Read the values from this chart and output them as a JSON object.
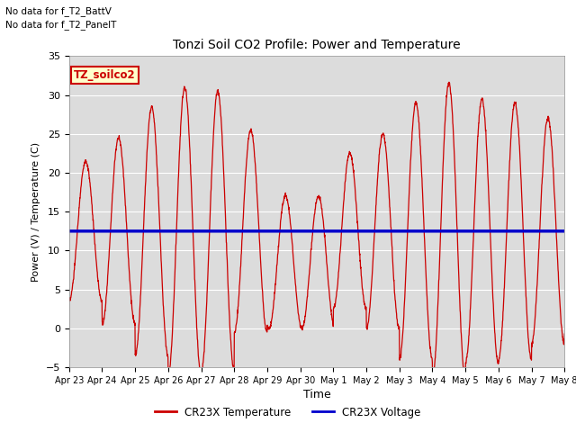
{
  "title": "Tonzi Soil CO2 Profile: Power and Temperature",
  "ylabel": "Power (V) / Temperature (C)",
  "xlabel": "Time",
  "annotation_lines": [
    "No data for f_T2_BattV",
    "No data for f_T2_PanelT"
  ],
  "legend_label_box": "TZ_soilco2",
  "legend_temp": "CR23X Temperature",
  "legend_volt": "CR23X Voltage",
  "ylim": [
    -5,
    35
  ],
  "yticks": [
    -5,
    0,
    5,
    10,
    15,
    20,
    25,
    30,
    35
  ],
  "voltage_value": 12.5,
  "temp_color": "#cc0000",
  "volt_color": "#0000cc",
  "background_color": "#dcdcdc",
  "x_tick_labels": [
    "Apr 23",
    "Apr 24",
    "Apr 25",
    "Apr 26",
    "Apr 27",
    "Apr 28",
    "Apr 29",
    "Apr 30",
    "May 1",
    "May 2",
    "May 3",
    "May 4",
    "May 5",
    "May 6",
    "May 7",
    "May 8"
  ],
  "num_days": 16
}
